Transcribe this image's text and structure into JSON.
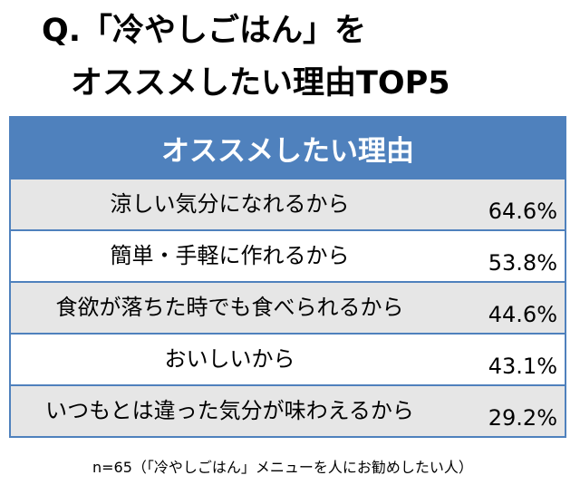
{
  "title_line1": "Q.「冷やしごはん」を",
  "title_line2": "オススメしたい理由TOP5",
  "chart_data": {
    "type": "table",
    "header": "オススメしたい理由",
    "rows": [
      {
        "reason": "涼しい気分になれるから",
        "percent": "64.6%",
        "value": 64.6
      },
      {
        "reason": "簡単・手軽に作れるから",
        "percent": "53.8%",
        "value": 53.8
      },
      {
        "reason": "食欲が落ちた時でも食べられるから",
        "percent": "44.6%",
        "value": 44.6
      },
      {
        "reason": "おいしいから",
        "percent": "43.1%",
        "value": 43.1
      },
      {
        "reason": "いつもとは違った気分が味わえるから",
        "percent": "29.2%",
        "value": 29.2
      }
    ]
  },
  "footnote": "n=65（「冷やしごはん」メニューを人にお勧めしたい人）",
  "colors": {
    "header_bg": "#4f81bd",
    "row_shade": "#e6e6e6"
  }
}
